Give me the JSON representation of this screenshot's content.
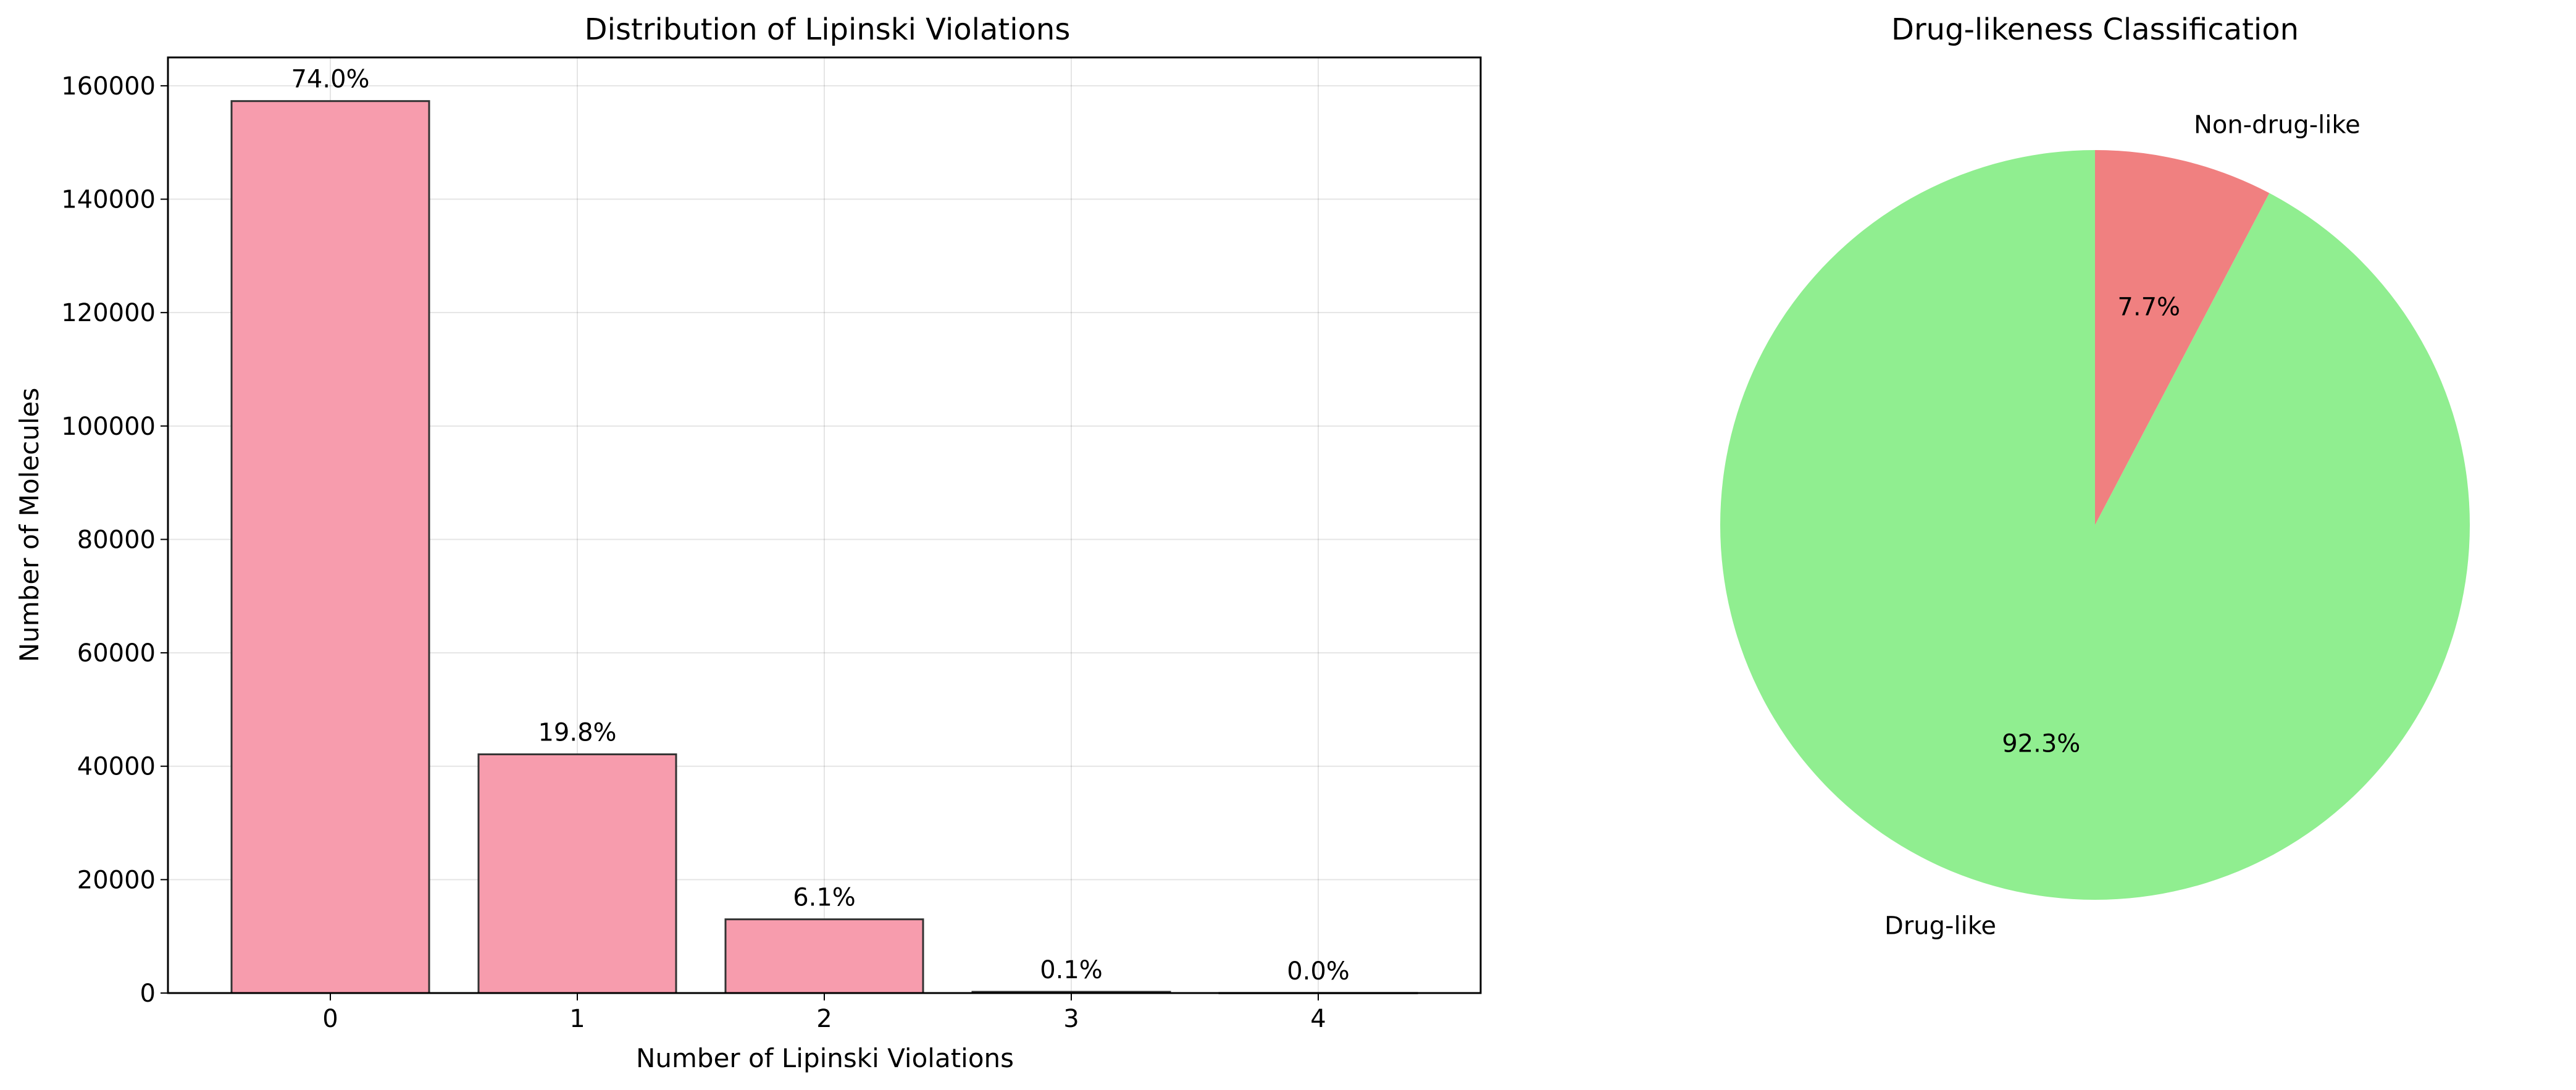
{
  "chart_data": [
    {
      "type": "bar",
      "title": "Distribution of Lipinski Violations",
      "xlabel": "Number of Lipinski Violations",
      "ylabel": "Number of Molecules",
      "categories": [
        "0",
        "1",
        "2",
        "3",
        "4"
      ],
      "values": [
        157300,
        42100,
        13000,
        210,
        20
      ],
      "data_labels": [
        "74.0%",
        "19.8%",
        "6.1%",
        "0.1%",
        "0.0%"
      ],
      "yticks": [
        0,
        20000,
        40000,
        60000,
        80000,
        100000,
        120000,
        140000,
        160000
      ],
      "ylim": [
        0,
        165000
      ],
      "grid": true,
      "bar_color": "#f79cad",
      "edge_color": "#333333"
    },
    {
      "type": "pie",
      "title": "Drug-likeness Classification",
      "labels": [
        "Drug-like",
        "Non-drug-like"
      ],
      "values": [
        92.3,
        7.7
      ],
      "pct_labels": [
        "92.3%",
        "7.7%"
      ],
      "colors": [
        "#90ee90",
        "#f08080"
      ]
    }
  ]
}
